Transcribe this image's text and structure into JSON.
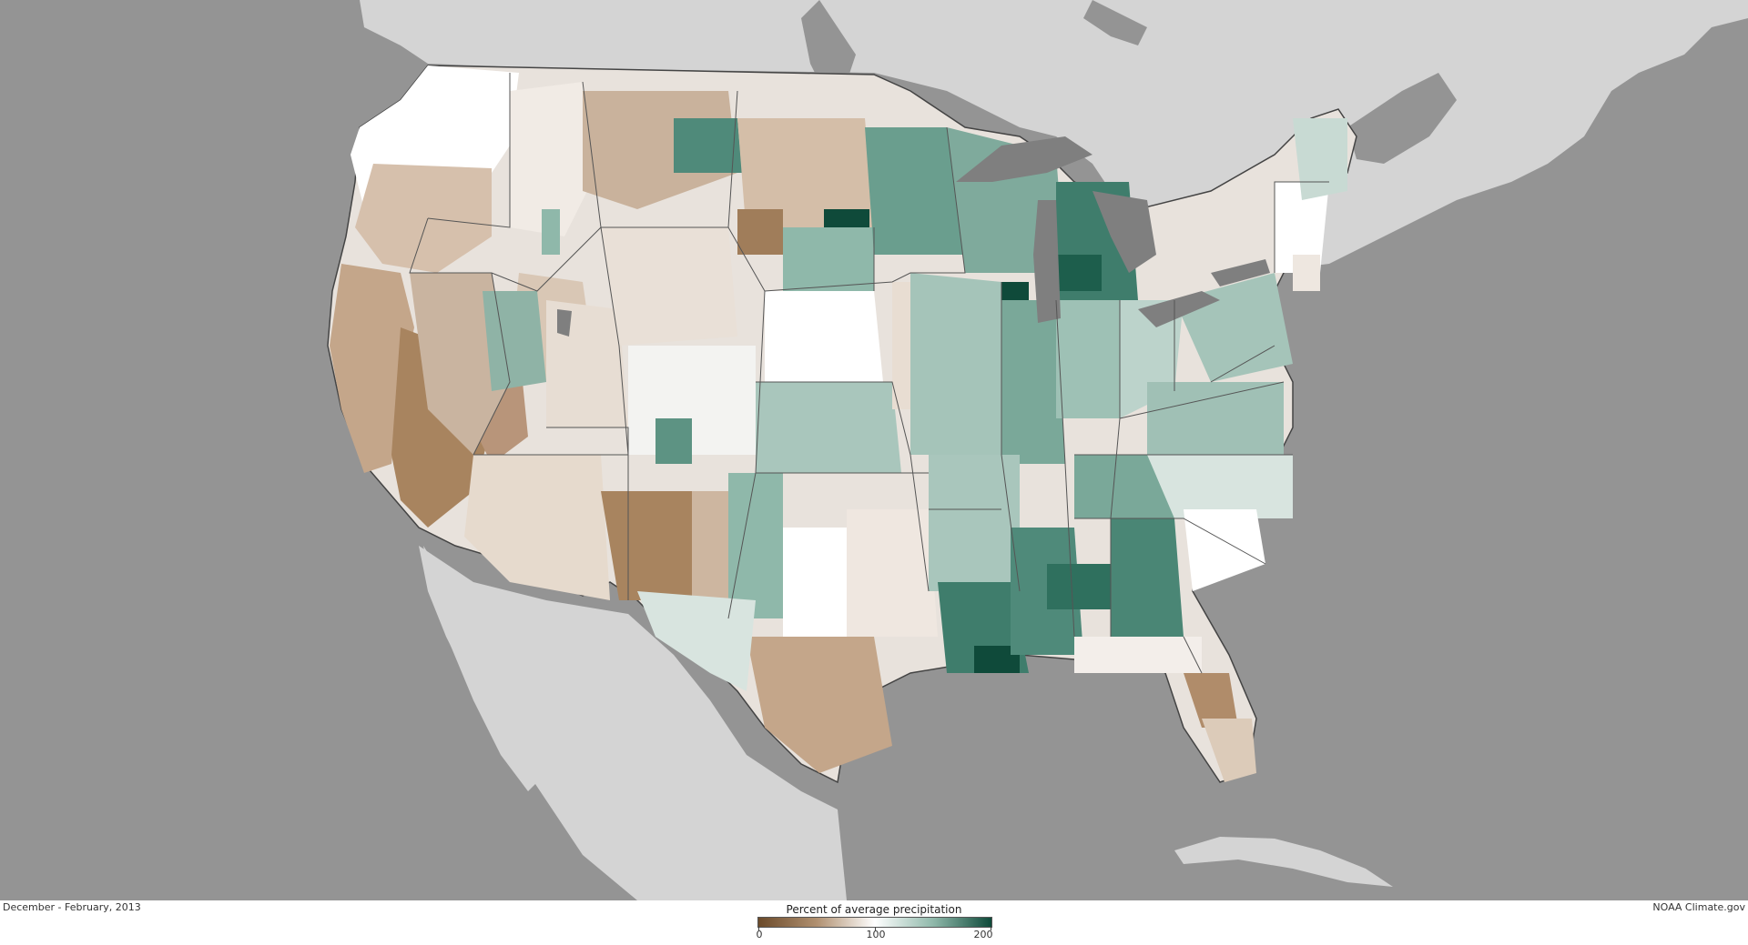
{
  "footer": {
    "period": "December - February, 2013",
    "credit": "NOAA Climate.gov"
  },
  "legend": {
    "title": "Percent of average precipitation",
    "ticks": [
      "0",
      "100",
      "200"
    ],
    "min": 0,
    "max": 200,
    "colors": {
      "low": "#6b4a2a",
      "mid": "#ffffff",
      "high": "#0f4a3a"
    }
  },
  "map": {
    "background_land": "#d4d4d4",
    "ocean": "#949494",
    "lakes": "#7f7f7f",
    "state_borders": "#555555"
  }
}
